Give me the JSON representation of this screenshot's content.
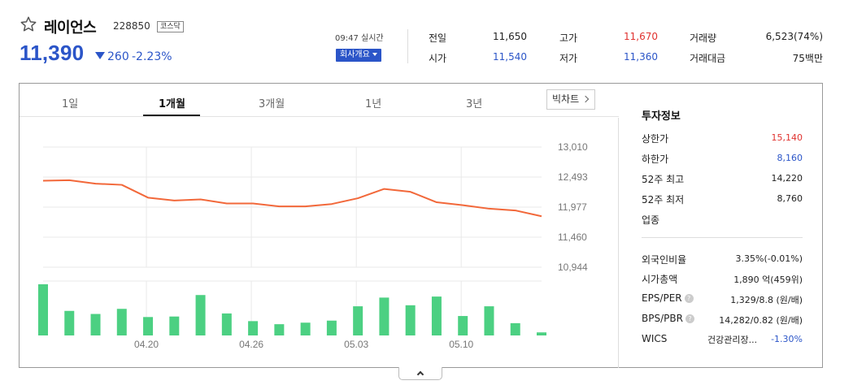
{
  "header": {
    "name": "레이언스",
    "code": "228850",
    "market_badge": "코스닥",
    "price": "11,390",
    "change": "260",
    "change_rate": "-2.23%",
    "time_label": "09:47 실시간",
    "company_button": "회사개요"
  },
  "quotes": [
    {
      "label": "전일",
      "value": "11,650",
      "color": "#222222"
    },
    {
      "label": "시가",
      "value": "11,540",
      "color": "#2b55c8"
    },
    {
      "label": "고가",
      "value": "11,670",
      "color": "#e0322f"
    },
    {
      "label": "저가",
      "value": "11,360",
      "color": "#2b55c8"
    },
    {
      "label": "거래량",
      "value": "6,523(74%)",
      "color": "#222222"
    },
    {
      "label": "거래대금",
      "value": "75백만",
      "color": "#222222"
    }
  ],
  "tabs": [
    {
      "label": "1일",
      "active": false
    },
    {
      "label": "1개월",
      "active": true
    },
    {
      "label": "3개월",
      "active": false
    },
    {
      "label": "1년",
      "active": false
    },
    {
      "label": "3년",
      "active": false
    }
  ],
  "bigchart_label": "빅차트",
  "chart_data": {
    "type": "line",
    "y_ticks": [
      "13,010",
      "12,493",
      "11,977",
      "11,460",
      "10,944"
    ],
    "y_tick_values": [
      13010,
      12493,
      11977,
      11460,
      10944
    ],
    "x_tick_labels": [
      "04.20",
      "04.26",
      "05.03",
      "05.10"
    ],
    "x_tick_index": [
      4,
      8,
      12,
      16
    ],
    "price_series": {
      "name": "",
      "color": "#f2683a",
      "values": [
        12430,
        12440,
        12380,
        12360,
        12140,
        12090,
        12110,
        12040,
        12040,
        11990,
        11990,
        12030,
        12130,
        12290,
        12240,
        12060,
        12010,
        11950,
        11920,
        11820
      ]
    },
    "volume_series": {
      "name": "",
      "color": "#4cd082",
      "relative_values": [
        1.0,
        0.48,
        0.42,
        0.52,
        0.36,
        0.37,
        0.79,
        0.43,
        0.28,
        0.22,
        0.25,
        0.29,
        0.57,
        0.74,
        0.59,
        0.76,
        0.38,
        0.57,
        0.24,
        0.06
      ]
    },
    "grid": true
  },
  "invest_info": {
    "title": "투자정보",
    "rows": [
      {
        "label": "상한가",
        "value": "15,140",
        "color": "#e0322f"
      },
      {
        "label": "하한가",
        "value": "8,160",
        "color": "#2b55c8"
      },
      {
        "label": "52주 최고",
        "value": "14,220",
        "color": "#222222"
      },
      {
        "label": "52주 최저",
        "value": "8,760",
        "color": "#222222"
      },
      {
        "label": "업종",
        "value": "",
        "color": "#222222"
      }
    ],
    "rows2": [
      {
        "label": "외국인비율",
        "value": "3.35%(-0.01%)",
        "help": false
      },
      {
        "label": "시가총액",
        "value": "1,890 억(459위)",
        "help": false
      },
      {
        "label": "EPS/PER",
        "value": "1,329/8.8 (원/배)",
        "help": true
      },
      {
        "label": "BPS/PBR",
        "value": "14,282/0.82 (원/배)",
        "help": true
      }
    ],
    "wics": {
      "label": "WICS",
      "name": "건강관리장...",
      "rate": "-1.30%"
    }
  },
  "help_glyph": "?"
}
